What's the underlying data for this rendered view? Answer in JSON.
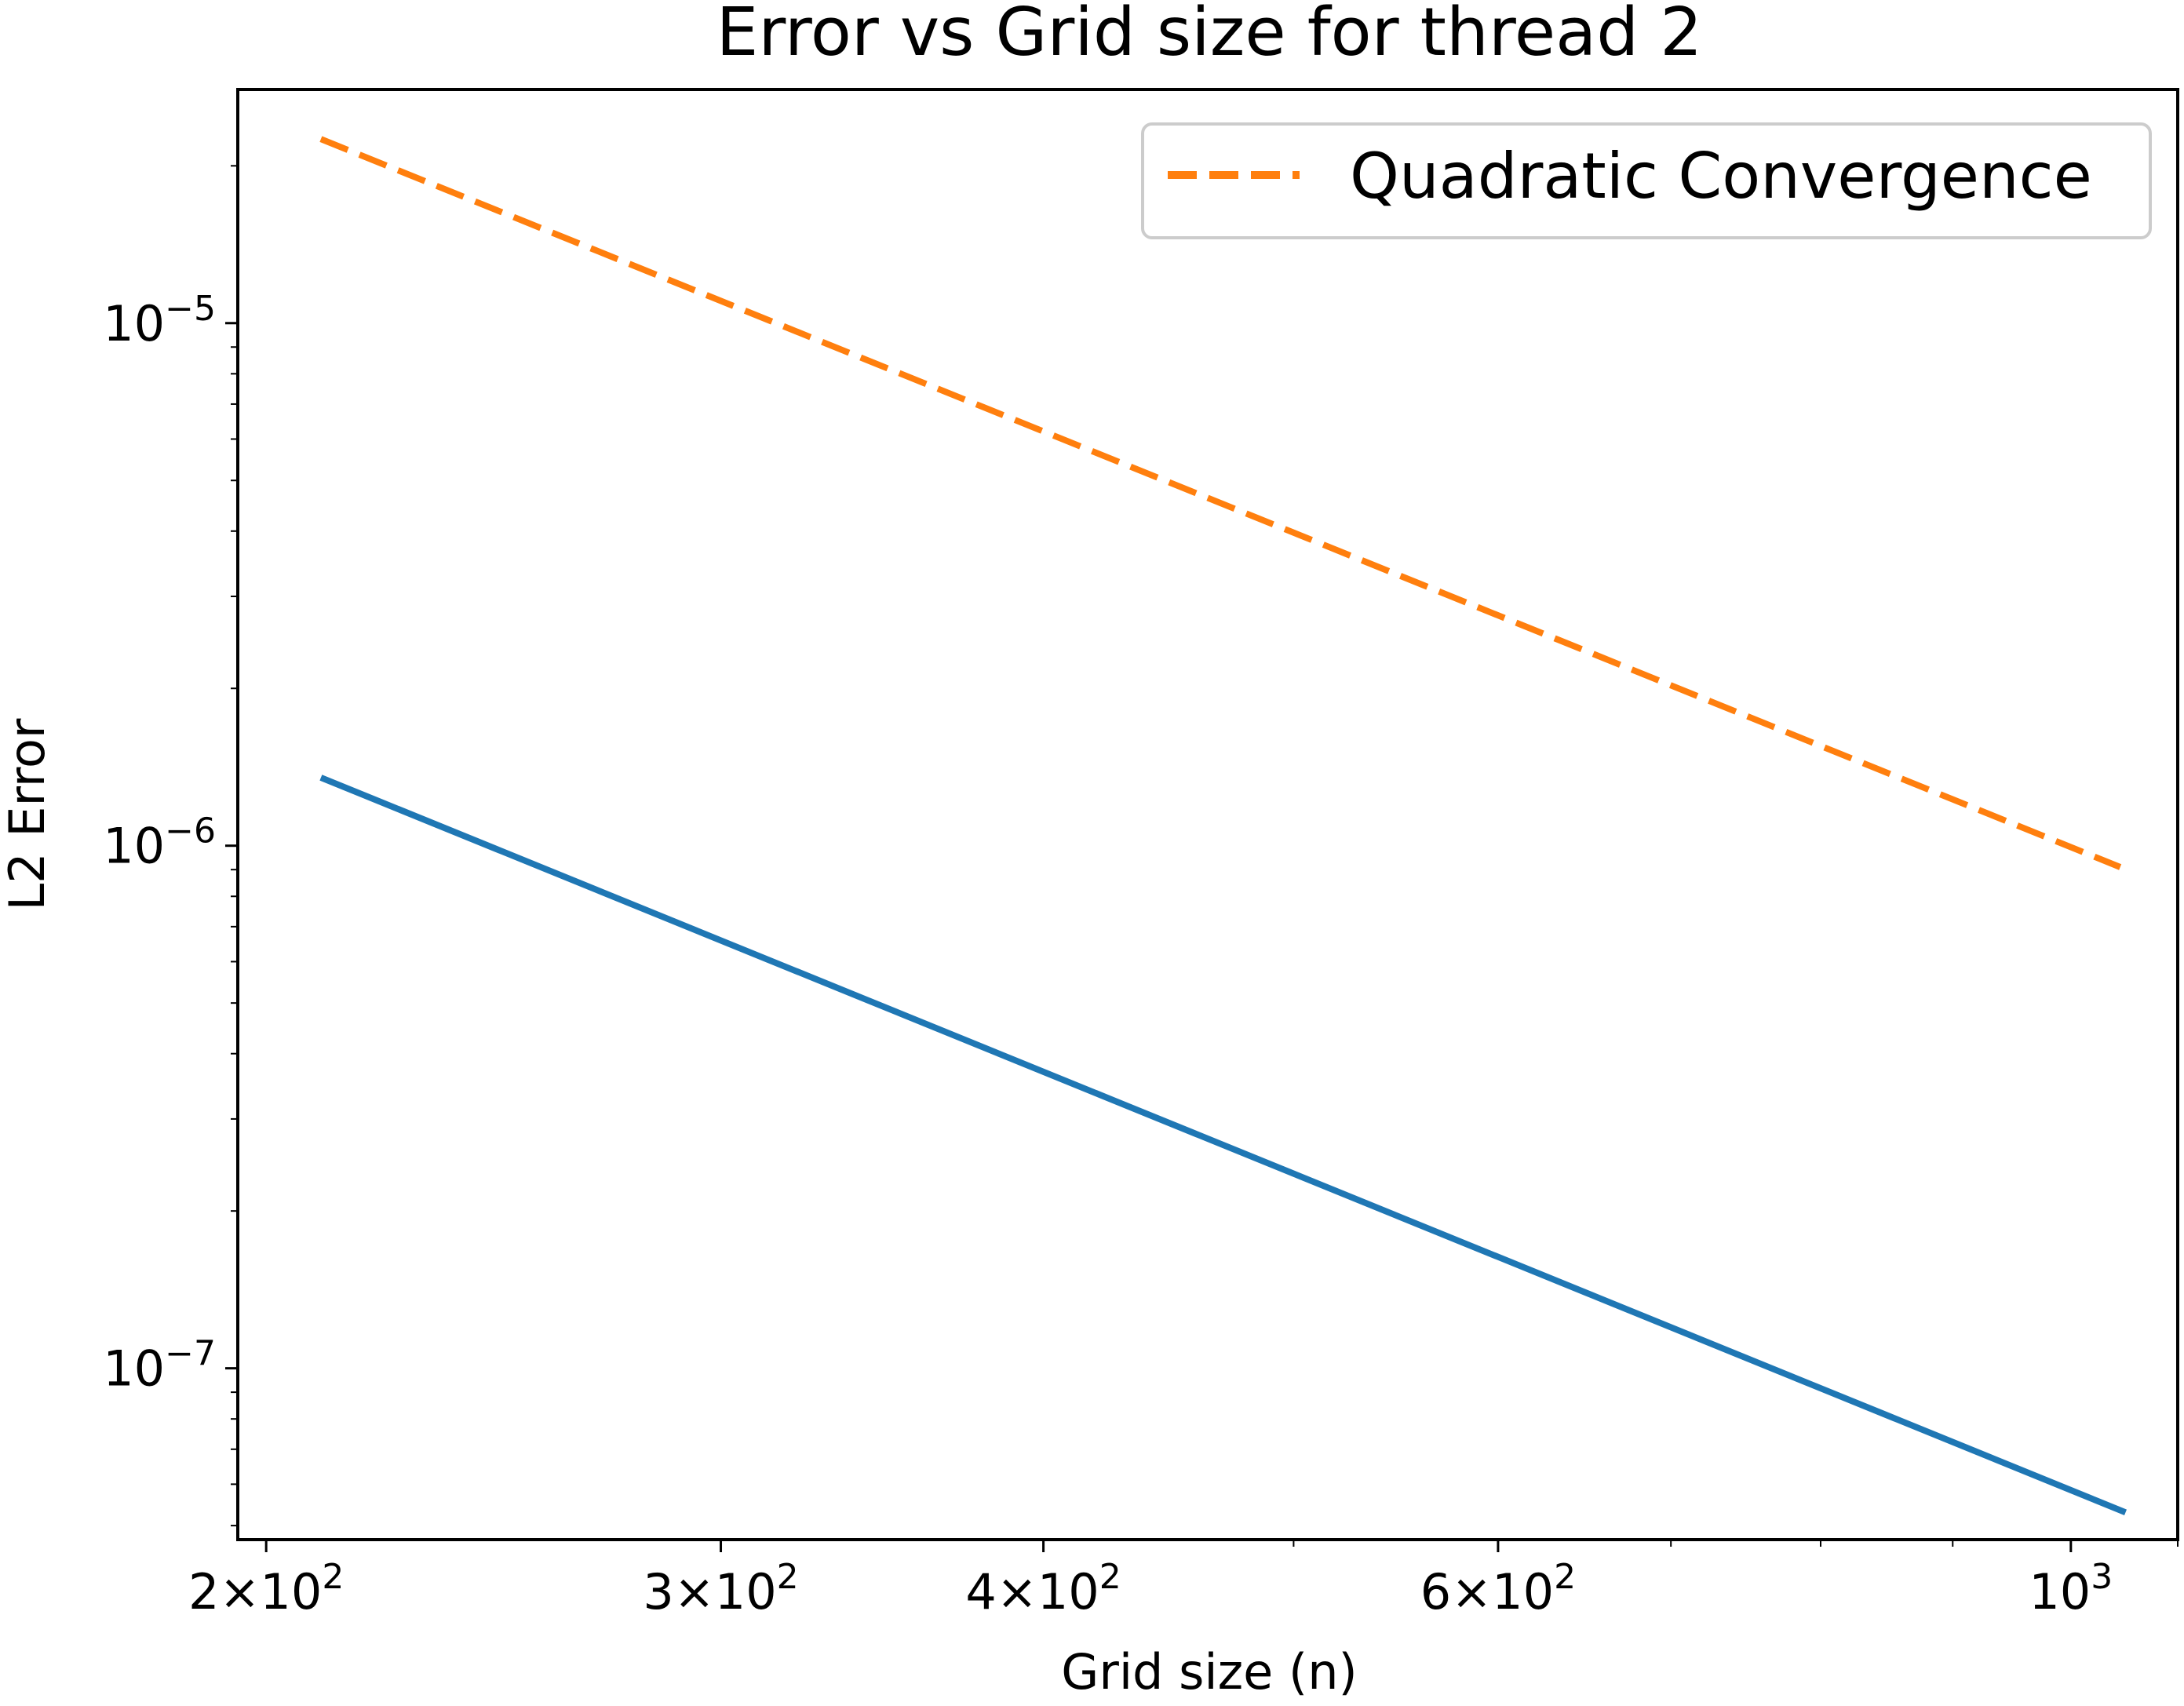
{
  "chart_data": {
    "type": "line",
    "title": "Error vs Grid size for thread 2",
    "xlabel": "Grid size (n)",
    "ylabel": "L2 Error",
    "xscale": "log",
    "yscale": "log",
    "xlim": [
      195,
      1100
    ],
    "ylim": [
      4.7e-08,
      2.8e-05
    ],
    "xticks": [
      {
        "value": 200,
        "mantissa": "2",
        "base": "10",
        "exp": "2"
      },
      {
        "value": 300,
        "mantissa": "3",
        "base": "10",
        "exp": "2"
      },
      {
        "value": 400,
        "mantissa": "4",
        "base": "10",
        "exp": "2"
      },
      {
        "value": 600,
        "mantissa": "6",
        "base": "10",
        "exp": "2"
      },
      {
        "value": 1000,
        "mantissa": "",
        "base": "10",
        "exp": "3"
      }
    ],
    "yticks": [
      {
        "value": 1e-05,
        "base": "10",
        "exp": "−5"
      },
      {
        "value": 1e-06,
        "base": "10",
        "exp": "−6"
      },
      {
        "value": 1e-07,
        "base": "10",
        "exp": "−7"
      }
    ],
    "grid": false,
    "legend_position": "top-right",
    "series": [
      {
        "name": "",
        "color": "#1f77b4",
        "style": "solid",
        "x": [
          210,
          1050
        ],
        "y": [
          1.35e-06,
          5.3e-08
        ]
      },
      {
        "name": "Quadratic Convergence",
        "color": "#ff7f0e",
        "style": "dashed",
        "x": [
          210,
          1045
        ],
        "y": [
          2.25e-05,
          9.1e-07
        ]
      }
    ]
  }
}
